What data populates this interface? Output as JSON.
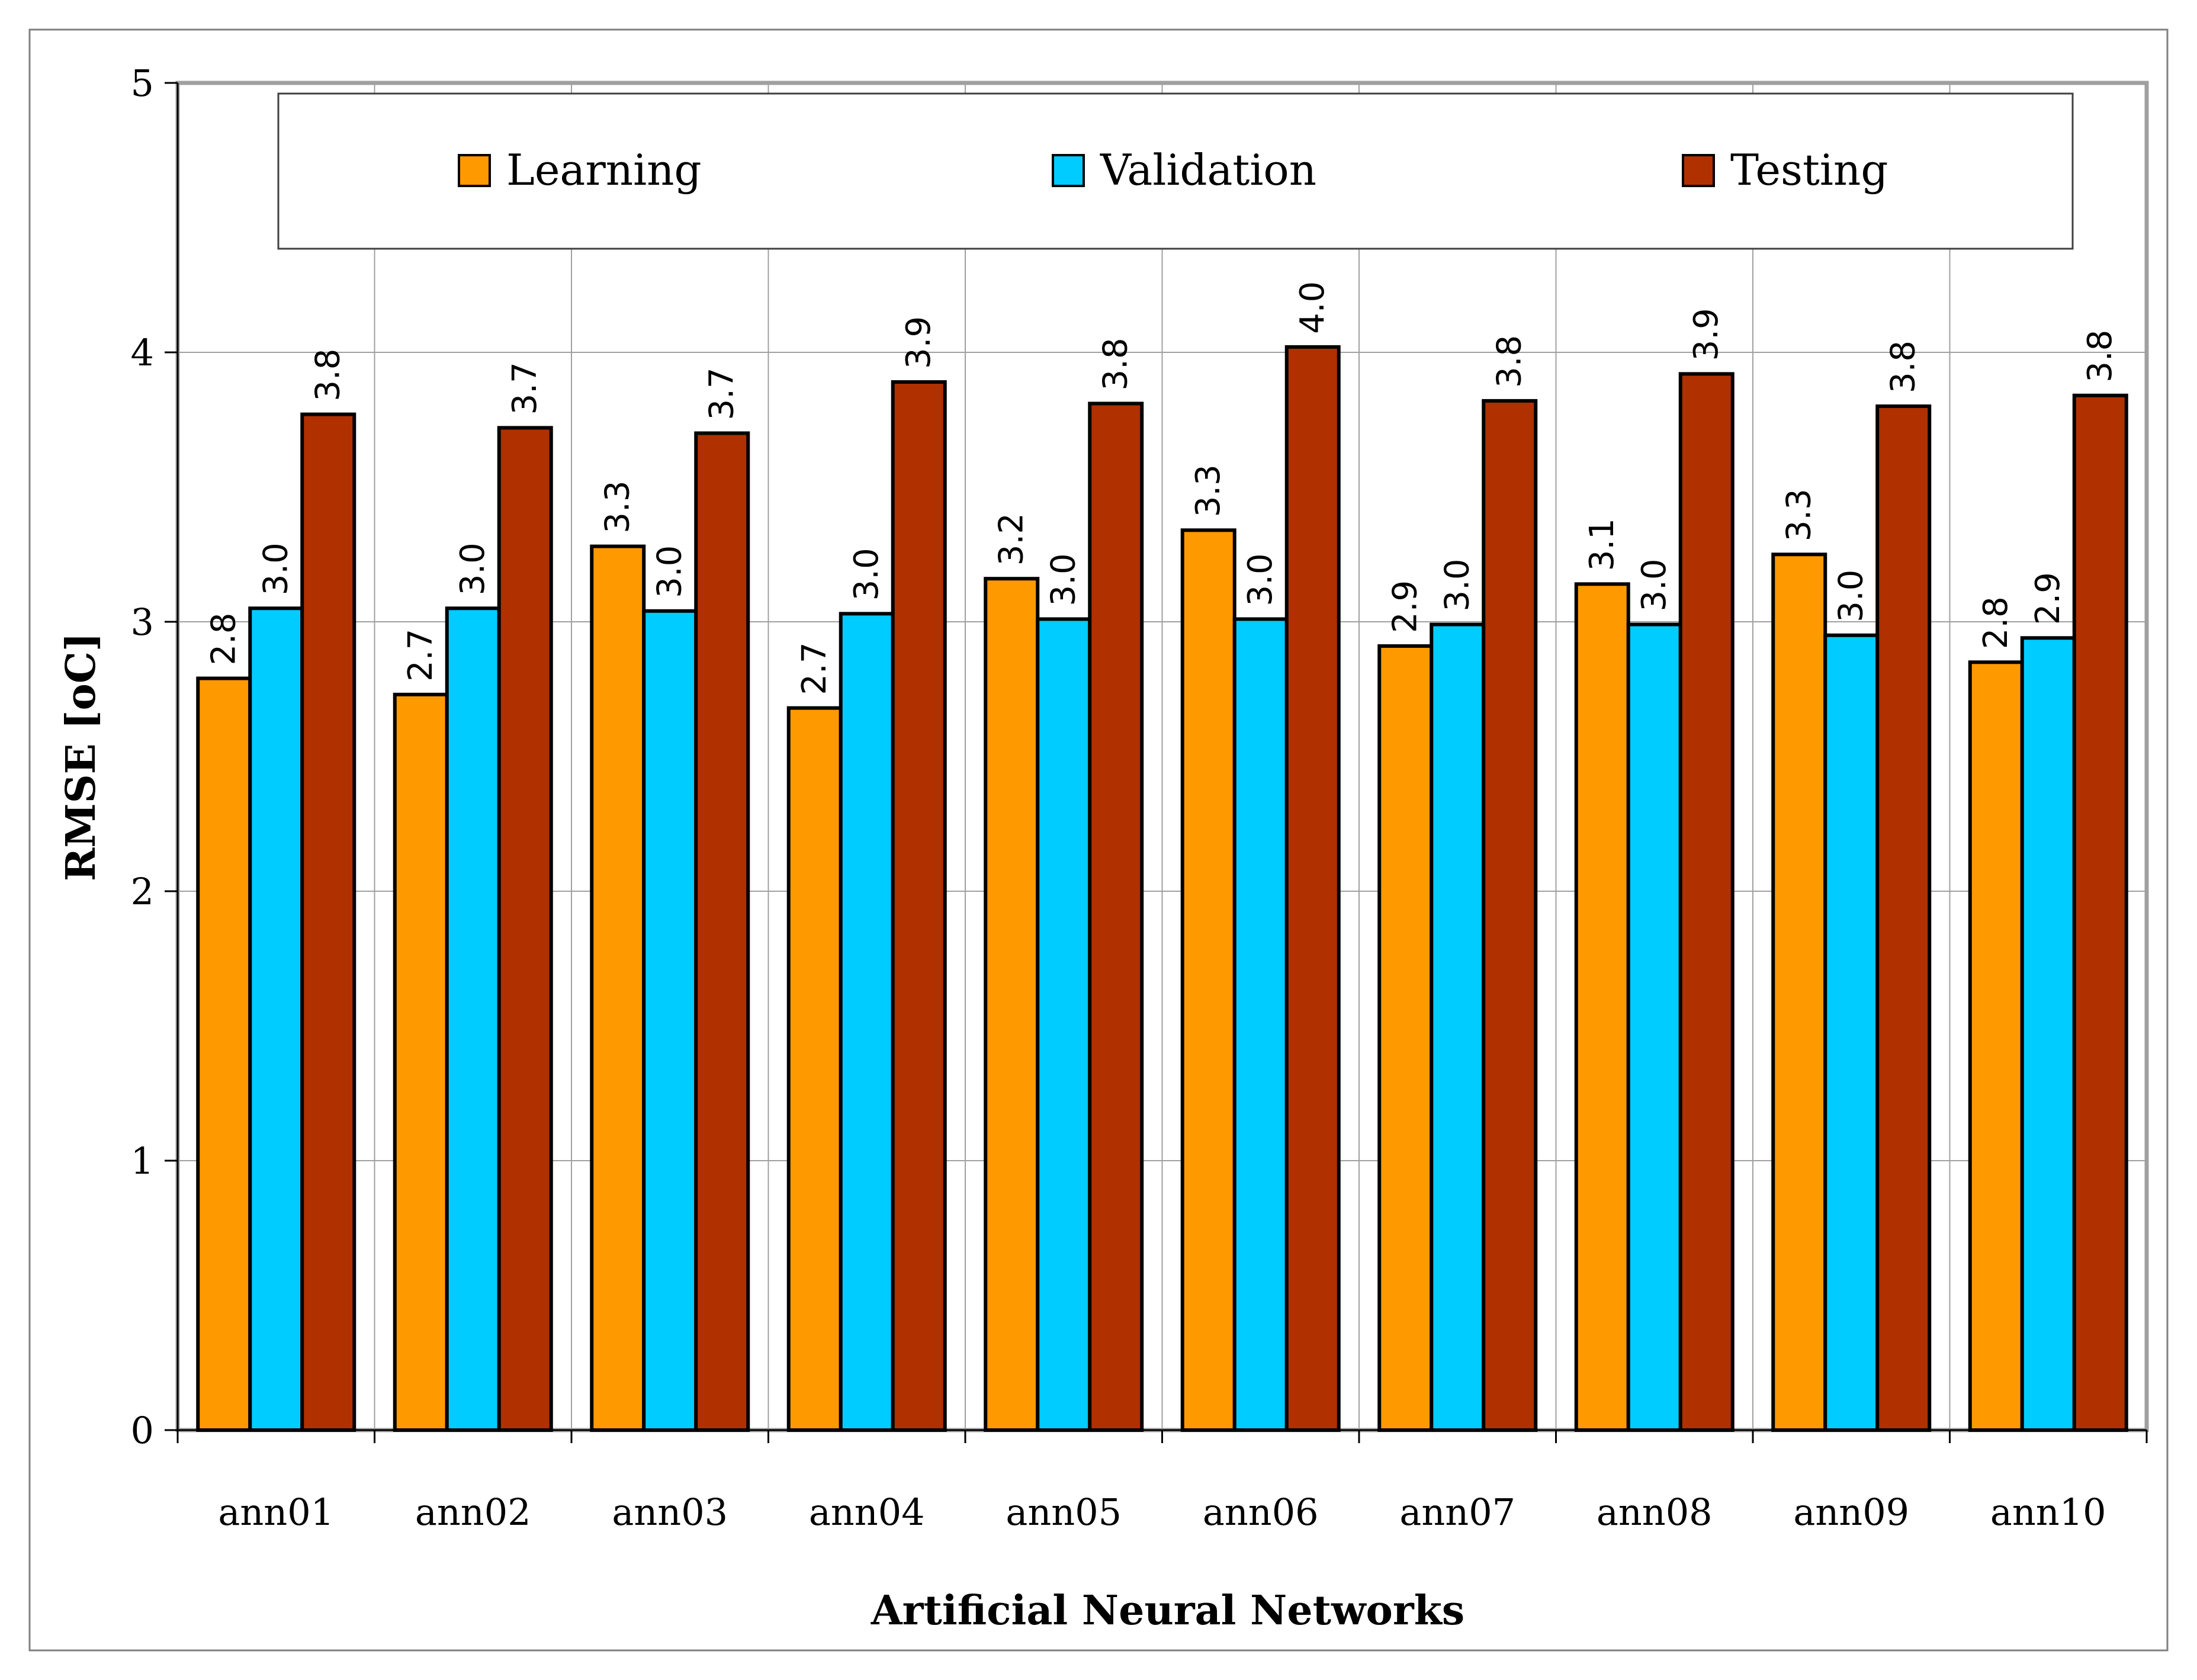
{
  "chart_data": {
    "type": "bar",
    "title": "",
    "xlabel": "Artificial Neural Networks",
    "ylabel": "RMSE [oC]",
    "ylim": [
      0,
      5
    ],
    "yticks": [
      "0",
      "1",
      "2",
      "3",
      "4",
      "5"
    ],
    "grid": true,
    "legend_position": "top",
    "categories": [
      "ann01",
      "ann02",
      "ann03",
      "ann04",
      "ann05",
      "ann06",
      "ann07",
      "ann08",
      "ann09",
      "ann10"
    ],
    "series": [
      {
        "name": "Learning",
        "color": "#ff9900",
        "values": [
          2.79,
          2.73,
          3.28,
          2.68,
          3.16,
          3.34,
          2.91,
          3.14,
          3.25,
          2.85
        ],
        "labels": [
          "2.8",
          "2.7",
          "3.3",
          "2.7",
          "3.2",
          "3.3",
          "2.9",
          "3.1",
          "3.3",
          "2.8"
        ]
      },
      {
        "name": "Validation",
        "color": "#00ccff",
        "values": [
          3.05,
          3.05,
          3.04,
          3.03,
          3.01,
          3.01,
          2.99,
          2.99,
          2.95,
          2.94
        ],
        "labels": [
          "3.0",
          "3.0",
          "3.0",
          "3.0",
          "3.0",
          "3.0",
          "3.0",
          "3.0",
          "3.0",
          "2.9"
        ]
      },
      {
        "name": "Testing",
        "color": "#b03000",
        "values": [
          3.77,
          3.72,
          3.7,
          3.89,
          3.81,
          4.02,
          3.82,
          3.92,
          3.8,
          3.84
        ],
        "labels": [
          "3.8",
          "3.7",
          "3.7",
          "3.9",
          "3.8",
          "4.0",
          "3.8",
          "3.9",
          "3.8",
          "3.8"
        ]
      }
    ]
  }
}
